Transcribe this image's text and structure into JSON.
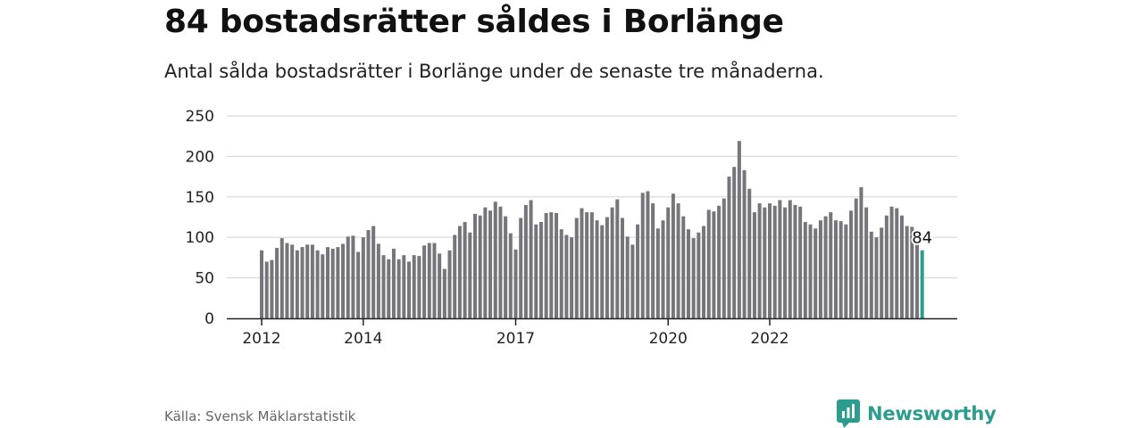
{
  "title": "84 bostadsrätter såldes i Borlänge",
  "subtitle": "Antal sålda bostadsrätter i Borlänge under de senaste tre månaderna.",
  "source": "Källa: Svensk Mäklarstatistik",
  "brand": {
    "name": "Newsworthy",
    "icon": "newsworthy-logo-icon"
  },
  "colors": {
    "bar": "#76757b",
    "highlight": "#2a9d8f",
    "grid": "#d9d9d9",
    "axis": "#222222",
    "brand": "#2a9d8f"
  },
  "chart_data": {
    "type": "bar",
    "ylim": [
      0,
      250
    ],
    "yticks": [
      0,
      50,
      100,
      150,
      200,
      250
    ],
    "xtick_labels": [
      {
        "label": "2012",
        "index": 0
      },
      {
        "label": "2014",
        "index": 20
      },
      {
        "label": "2017",
        "index": 50
      },
      {
        "label": "2020",
        "index": 80
      },
      {
        "label": "2022",
        "index": 100
      }
    ],
    "grid": true,
    "highlight_label": "84",
    "values": [
      84,
      70,
      72,
      87,
      99,
      93,
      91,
      84,
      88,
      91,
      91,
      84,
      79,
      88,
      86,
      88,
      92,
      101,
      102,
      82,
      100,
      109,
      114,
      92,
      78,
      73,
      86,
      73,
      78,
      70,
      78,
      77,
      90,
      93,
      93,
      80,
      61,
      84,
      103,
      114,
      119,
      106,
      129,
      127,
      137,
      133,
      144,
      138,
      126,
      105,
      85,
      124,
      140,
      146,
      116,
      119,
      130,
      131,
      130,
      110,
      103,
      100,
      124,
      136,
      131,
      131,
      121,
      115,
      125,
      137,
      147,
      124,
      101,
      91,
      116,
      155,
      157,
      142,
      111,
      121,
      137,
      154,
      142,
      126,
      110,
      99,
      106,
      114,
      134,
      132,
      139,
      148,
      175,
      187,
      219,
      183,
      160,
      131,
      142,
      137,
      142,
      139,
      146,
      137,
      146,
      140,
      138,
      119,
      116,
      111,
      121,
      126,
      131,
      121,
      120,
      116,
      133,
      148,
      162,
      137,
      107,
      100,
      112,
      127,
      138,
      136,
      127,
      114,
      113,
      93,
      84
    ]
  }
}
